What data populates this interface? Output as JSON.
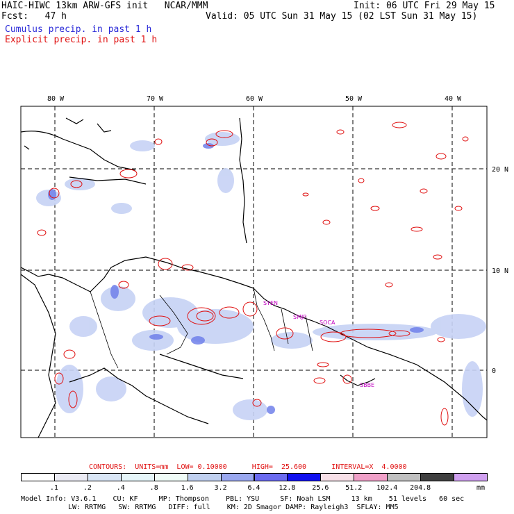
{
  "header": {
    "title": "HAIC-HIWC 13km ARW-GFS init   NCAR/MMM",
    "fcst": "Fcst:   47 h",
    "init": "Init: 06 UTC Fri 29 May 15",
    "valid": "Valid: 05 UTC Sun 31 May 15 (02 LST Sun 31 May 15)",
    "cumulus": "Cumulus precip. in past 1 h",
    "explicit": "Explicit precip. in past 1 h"
  },
  "map": {
    "lon_labels": [
      "80 W",
      "70 W",
      "60 W",
      "50 W",
      "40 W"
    ],
    "lat_labels": [
      "20 N",
      "10 N",
      "0"
    ],
    "stations": [
      "SYEN",
      "SMJP",
      "SOCA",
      "SBBE"
    ]
  },
  "contours": {
    "label": "CONTOURS:  UNITS=mm  LOW= 0.10000      HIGH=  25.600      INTERVAL=X  4.0000"
  },
  "colorbar": {
    "ticks": [
      ".1",
      ".2",
      ".4",
      ".8",
      "1.6",
      "3.2",
      "6.4",
      "12.8",
      "25.6",
      "51.2",
      "102.4",
      "204.8"
    ],
    "unit": "mm",
    "colors": [
      "#ffffff",
      "#ebebf4",
      "#d9e6f6",
      "#e6f6fa",
      "#f0fcf8",
      "#c0d0f0",
      "#9aa8f0",
      "#6a6af0",
      "#1010f0",
      "#f8e0e8",
      "#f0a0c8",
      "#c0c0c0",
      "#404040",
      "#d0a0f0"
    ]
  },
  "model_info": {
    "line1": "Model Info: V3.6.1    CU: KF     MP: Thompson    PBL: YSU     SF: Noah LSM     13 km    51 levels   60 sec",
    "line2": "LW: RRTMG   SW: RRTMG   DIFF: full    KM: 2D Smagor DAMP: Rayleigh3  SFLAY: MM5"
  }
}
